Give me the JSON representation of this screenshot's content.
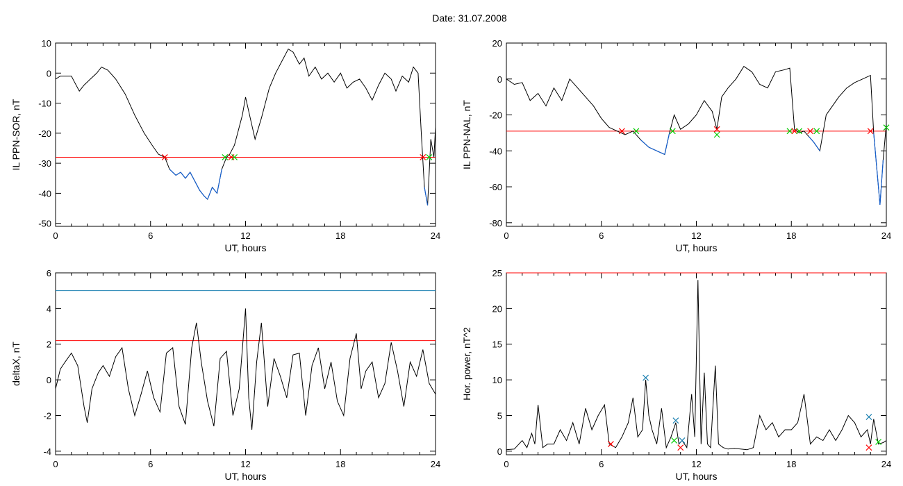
{
  "title": "Date:  31.07.2008",
  "colors": {
    "line": "#000000",
    "threshold": "#ff0000",
    "below": "#1560d0",
    "upper": "#1a7fb0",
    "green_mark": "#00cc00"
  },
  "chart_data": [
    {
      "type": "line",
      "xlabel": "UT, hours",
      "ylabel": "IL PPN-SOR, nT",
      "xlim": [
        0,
        24
      ],
      "ylim": [
        -51,
        10
      ],
      "xticks": [
        0,
        6,
        12,
        18,
        24
      ],
      "yticks": [
        10,
        0,
        -10,
        -20,
        -30,
        -40,
        -50
      ],
      "grid": false,
      "threshold": {
        "value": -28,
        "color": "#ff0000"
      },
      "series": [
        {
          "x": [
            0,
            0.3,
            0.7,
            1,
            1.2,
            1.5,
            1.8,
            2.2,
            2.6,
            2.9,
            3.3,
            3.8,
            4.4,
            5,
            5.6,
            6.1,
            6.5,
            6.9,
            7.2,
            7.6,
            7.9,
            8.2,
            8.5,
            8.8,
            9.1,
            9.4,
            9.6,
            9.9,
            10.2,
            10.5,
            10.8,
            11,
            11.3,
            11.5,
            11.8,
            12,
            12.3,
            12.6,
            13,
            13.5,
            13.9,
            14.3,
            14.7,
            15,
            15.4,
            15.7,
            16,
            16.4,
            16.8,
            17.2,
            17.6,
            18,
            18.4,
            18.8,
            19.2,
            19.6,
            20,
            20.4,
            20.8,
            21.2,
            21.5,
            21.9,
            22.3,
            22.6,
            22.9,
            23.1,
            23.3,
            23.5,
            23.7,
            23.9,
            24
          ],
          "y": [
            -2,
            -1,
            -1,
            -1,
            -3,
            -6,
            -4,
            -2,
            0,
            2,
            1,
            -2,
            -7,
            -14,
            -20,
            -24,
            -27,
            -28,
            -32,
            -34,
            -33,
            -35,
            -33,
            -36,
            -39,
            -41,
            -42,
            -38,
            -40,
            -32,
            -28,
            -27,
            -24,
            -20,
            -14,
            -8,
            -15,
            -22,
            -15,
            -5,
            0,
            4,
            8,
            7,
            3,
            5,
            -1,
            2,
            -2,
            0,
            -3,
            0,
            -5,
            -3,
            -2,
            -5,
            -9,
            -4,
            0,
            -2,
            -6,
            -1,
            -3,
            2,
            0,
            -20,
            -38,
            -44,
            -22,
            -28,
            -18
          ],
          "markers": [
            {
              "x": 6.9,
              "y": -28,
              "color": "#ff0000"
            },
            {
              "x": 10.7,
              "y": -28,
              "color": "#00cc00"
            },
            {
              "x": 11.1,
              "y": -28,
              "color": "#ff0000"
            },
            {
              "x": 11.3,
              "y": -28,
              "color": "#00cc00"
            },
            {
              "x": 23.2,
              "y": -28,
              "color": "#ff0000"
            },
            {
              "x": 23.6,
              "y": -28,
              "color": "#00cc00"
            }
          ]
        }
      ]
    },
    {
      "type": "line",
      "xlabel": "UT, hours",
      "ylabel": "IL PPN-NAL, nT",
      "xlim": [
        0,
        24
      ],
      "ylim": [
        -82,
        20
      ],
      "xticks": [
        0,
        6,
        12,
        18,
        24
      ],
      "yticks": [
        20,
        0,
        -20,
        -40,
        -60,
        -80
      ],
      "grid": false,
      "threshold": {
        "value": -29,
        "color": "#ff0000"
      },
      "series": [
        {
          "x": [
            0,
            0.5,
            1,
            1.5,
            2,
            2.5,
            3,
            3.5,
            4,
            4.5,
            5,
            5.5,
            6,
            6.5,
            7,
            7.5,
            8,
            8.5,
            9,
            9.5,
            10,
            10.3,
            10.6,
            11,
            11.5,
            12,
            12.5,
            13,
            13.3,
            13.6,
            14,
            14.5,
            15,
            15.5,
            16,
            16.5,
            17,
            17.5,
            17.9,
            18.2,
            18.5,
            18.8,
            19.1,
            19.4,
            19.8,
            20.2,
            20.6,
            21,
            21.5,
            22,
            22.5,
            23,
            23.2,
            23.4,
            23.6,
            23.8,
            24
          ],
          "y": [
            0,
            -3,
            -2,
            -12,
            -8,
            -15,
            -5,
            -12,
            0,
            -5,
            -10,
            -15,
            -22,
            -27,
            -29,
            -31,
            -29,
            -34,
            -38,
            -40,
            -42,
            -30,
            -20,
            -28,
            -25,
            -20,
            -12,
            -18,
            -28,
            -10,
            -5,
            0,
            7,
            4,
            -3,
            -5,
            4,
            5,
            6,
            -28,
            -30,
            -29,
            -32,
            -35,
            -40,
            -20,
            -15,
            -10,
            -5,
            -2,
            0,
            2,
            -30,
            -50,
            -70,
            -45,
            -25
          ],
          "markers": [
            {
              "x": 7.3,
              "y": -29,
              "color": "#ff0000"
            },
            {
              "x": 8.2,
              "y": -29,
              "color": "#00cc00"
            },
            {
              "x": 10.5,
              "y": -29,
              "color": "#00cc00"
            },
            {
              "x": 13.3,
              "y": -31,
              "color": "#00cc00"
            },
            {
              "x": 13.3,
              "y": -28,
              "color": "#ff0000"
            },
            {
              "x": 17.9,
              "y": -29,
              "color": "#00cc00"
            },
            {
              "x": 18.2,
              "y": -29,
              "color": "#ff0000"
            },
            {
              "x": 18.5,
              "y": -29,
              "color": "#00cc00"
            },
            {
              "x": 19.2,
              "y": -29,
              "color": "#ff0000"
            },
            {
              "x": 19.6,
              "y": -29,
              "color": "#00cc00"
            },
            {
              "x": 23,
              "y": -29,
              "color": "#ff0000"
            },
            {
              "x": 24,
              "y": -27,
              "color": "#00cc00"
            }
          ]
        }
      ]
    },
    {
      "type": "line",
      "xlabel": "UT, hours",
      "ylabel": "deltaX, nT",
      "xlim": [
        0,
        24
      ],
      "ylim": [
        -4.2,
        6
      ],
      "xticks": [
        0,
        6,
        12,
        18,
        24
      ],
      "yticks": [
        6,
        4,
        2,
        0,
        -2,
        -4
      ],
      "grid": false,
      "hlines": [
        {
          "value": 5,
          "color": "#1a7fb0"
        },
        {
          "value": 2.2,
          "color": "#ff0000"
        }
      ],
      "series": [
        {
          "x": [
            0,
            0.3,
            0.6,
            1,
            1.4,
            1.8,
            2,
            2.3,
            2.7,
            3,
            3.4,
            3.8,
            4.2,
            4.6,
            5,
            5.4,
            5.8,
            6.2,
            6.6,
            7,
            7.4,
            7.8,
            8.2,
            8.6,
            8.9,
            9.2,
            9.6,
            10,
            10.4,
            10.8,
            11.2,
            11.6,
            12,
            12.2,
            12.4,
            12.7,
            13,
            13.4,
            13.8,
            14.2,
            14.6,
            15,
            15.4,
            15.8,
            16.2,
            16.6,
            17,
            17.4,
            17.8,
            18.2,
            18.6,
            19,
            19.3,
            19.6,
            20,
            20.4,
            20.8,
            21.2,
            21.6,
            22,
            22.4,
            22.8,
            23.2,
            23.6,
            24
          ],
          "y": [
            -0.5,
            0.6,
            1,
            1.5,
            0.8,
            -1.5,
            -2.4,
            -0.5,
            0.4,
            0.8,
            0.2,
            1.3,
            1.8,
            -0.5,
            -2,
            -0.8,
            0.5,
            -1,
            -1.8,
            1.5,
            1.8,
            -1.5,
            -2.5,
            1.8,
            3.2,
            1,
            -1.2,
            -2.6,
            1.2,
            1.6,
            -2,
            -0.5,
            4,
            -1,
            -2.8,
            1,
            3.2,
            -1.5,
            1.2,
            0.2,
            -1,
            1.4,
            1.5,
            -2,
            0.8,
            1.8,
            -0.5,
            1,
            -1.2,
            -2,
            1.2,
            2.6,
            -0.5,
            0.5,
            1,
            -1,
            -0.2,
            2.1,
            0.5,
            -1.5,
            1,
            0.2,
            1.7,
            -0.2,
            -0.8
          ],
          "markers": []
        }
      ]
    },
    {
      "type": "line",
      "xlabel": "UT, hours",
      "ylabel": "Hor. power, nT^2",
      "xlim": [
        0,
        24
      ],
      "ylim": [
        -0.5,
        25
      ],
      "xticks": [
        0,
        6,
        12,
        18,
        24
      ],
      "yticks": [
        0,
        5,
        10,
        15,
        20,
        25
      ],
      "grid": false,
      "threshold": {
        "value": 25,
        "color": "#ff0000"
      },
      "series": [
        {
          "x": [
            0,
            0.5,
            1,
            1.3,
            1.6,
            1.8,
            2,
            2.3,
            2.6,
            3,
            3.4,
            3.8,
            4.2,
            4.6,
            5,
            5.4,
            5.8,
            6.2,
            6.5,
            6.9,
            7.3,
            7.7,
            8,
            8.3,
            8.6,
            8.8,
            9,
            9.2,
            9.5,
            9.8,
            10.1,
            10.4,
            10.7,
            10.9,
            11.1,
            11.4,
            11.7,
            11.9,
            12.1,
            12.3,
            12.5,
            12.7,
            12.9,
            13.2,
            13.4,
            13.7,
            14,
            14.4,
            14.8,
            15.2,
            15.6,
            16,
            16.4,
            16.8,
            17.2,
            17.6,
            18,
            18.4,
            18.8,
            19.2,
            19.6,
            20,
            20.4,
            20.8,
            21.2,
            21.6,
            22,
            22.4,
            22.8,
            23,
            23.2,
            23.5,
            23.8,
            24
          ],
          "y": [
            0.2,
            0.3,
            1.5,
            0.5,
            2.5,
            1,
            6.5,
            0.5,
            1,
            1,
            3,
            1.5,
            4,
            1,
            6,
            3,
            5,
            6.5,
            1,
            0.5,
            2,
            4,
            7.5,
            2,
            3,
            10,
            5,
            3,
            1,
            6,
            0.5,
            2,
            4,
            1,
            1.5,
            0.5,
            8,
            2,
            24,
            1,
            11,
            1,
            0.5,
            12,
            1,
            0.5,
            0.3,
            0.4,
            0.3,
            0.2,
            0.5,
            5,
            3,
            4,
            2,
            3,
            3,
            4,
            8,
            1,
            2,
            1.5,
            3,
            1.5,
            3,
            5,
            4,
            2,
            3,
            1,
            4.5,
            1,
            1.2,
            1.5
          ],
          "markers": [
            {
              "x": 6.6,
              "y": 1,
              "color": "#ff0000"
            },
            {
              "x": 8.8,
              "y": 10.3,
              "color": "#1a7fb0"
            },
            {
              "x": 10.6,
              "y": 1.5,
              "color": "#00cc00"
            },
            {
              "x": 10.7,
              "y": 4.3,
              "color": "#1a7fb0"
            },
            {
              "x": 11.1,
              "y": 1.5,
              "color": "#1a7fb0"
            },
            {
              "x": 11,
              "y": 0.5,
              "color": "#ff0000"
            },
            {
              "x": 22.9,
              "y": 4.8,
              "color": "#1a7fb0"
            },
            {
              "x": 22.9,
              "y": 0.5,
              "color": "#ff0000"
            },
            {
              "x": 23.5,
              "y": 1.3,
              "color": "#00cc00"
            }
          ]
        }
      ]
    }
  ]
}
